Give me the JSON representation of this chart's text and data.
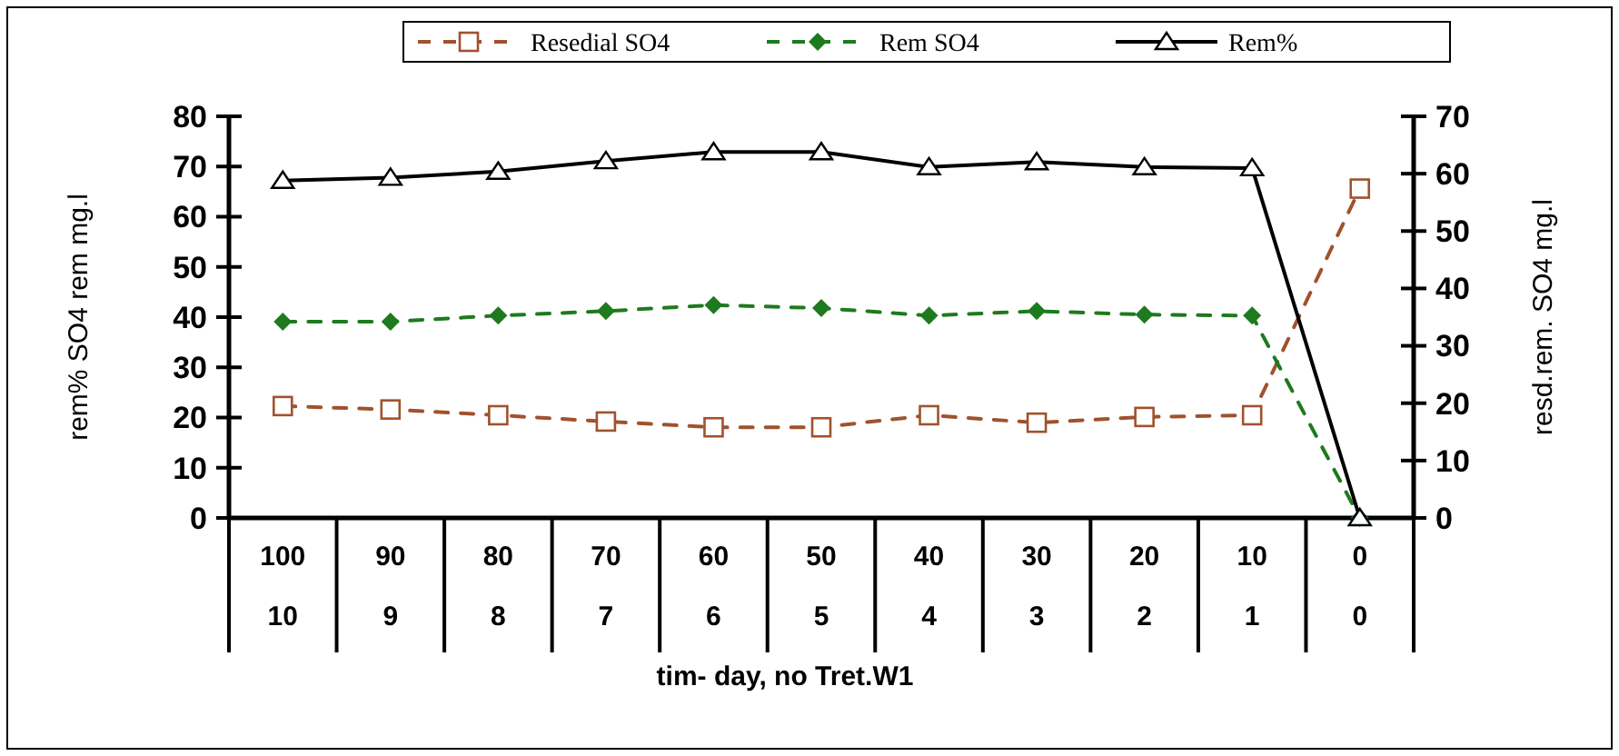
{
  "chart_data": {
    "type": "line",
    "xlabel": "tim- day, no Tret.W1",
    "ylabel": "rem% SO4 rem mg.l",
    "y2label": "resd.rem. SO4 mg.l",
    "categories": [
      "100\n10",
      "90\n9",
      "80\n8",
      "70\n7",
      "60\n6",
      "50\n5",
      "40\n4",
      "30\n3",
      "20\n2",
      "10\n1",
      "0\n0"
    ],
    "ylim": [
      0,
      80
    ],
    "yticks": [
      0,
      10,
      20,
      30,
      40,
      50,
      60,
      70,
      80
    ],
    "y2lim": [
      0,
      70
    ],
    "y2ticks": [
      0,
      10,
      20,
      30,
      40,
      50,
      60,
      70
    ],
    "legend": "top",
    "grid": false,
    "series": [
      {
        "name": "Resedial SO4",
        "color": "#a0522d",
        "axis": "y2",
        "marker": "square",
        "line_style": "dashed",
        "values": [
          19.5,
          18.9,
          17.9,
          16.8,
          15.8,
          15.8,
          17.9,
          16.6,
          17.6,
          17.9,
          57.4
        ]
      },
      {
        "name": "Rem SO4",
        "color": "#1e7a1e",
        "marker": "diamond",
        "line_style": "dashed",
        "values": [
          39.1,
          39.1,
          40.3,
          41.2,
          42.4,
          41.8,
          40.3,
          41.2,
          40.5,
          40.3,
          0
        ]
      },
      {
        "name": "Rem%",
        "color": "#000000",
        "marker": "triangle",
        "line_style": "solid",
        "values": [
          67.2,
          67.8,
          69.0,
          71.1,
          72.9,
          72.9,
          69.9,
          70.9,
          69.9,
          69.7,
          0
        ]
      }
    ]
  }
}
